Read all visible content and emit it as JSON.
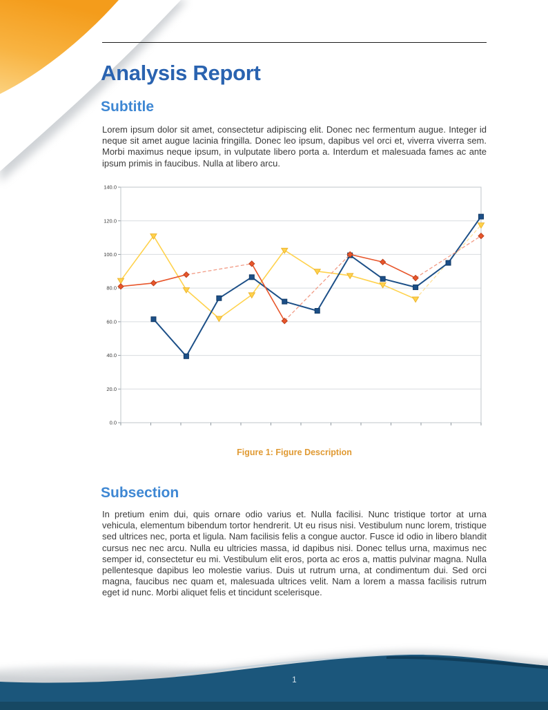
{
  "document": {
    "title": "Analysis Report",
    "subtitle_section": {
      "heading": "Subtitle",
      "body": "Lorem ipsum dolor sit amet, consectetur adipiscing elit.  Donec nec fermentum augue.  Integer id neque sit amet augue lacinia fringilla.  Donec leo ipsum, dapibus vel orci et, viverra viverra sem.  Morbi maximus neque ipsum, in vulputate libero porta a.  Interdum et malesuada fames ac ante ipsum primis in faucibus. Nulla at libero arcu."
    },
    "figure": {
      "caption": "Figure 1: Figure Description"
    },
    "subsection": {
      "heading": "Subsection",
      "body": "In pretium enim dui, quis ornare odio varius et.  Nulla facilisi.  Nunc tristique tortor at urna vehicula, elementum bibendum tortor hendrerit.  Ut eu risus nisi.  Vestibulum nunc lorem, tristique sed ultrices nec, porta et ligula. Nam facilisis felis a congue auctor. Fusce id odio in libero blandit cursus nec nec arcu. Nulla eu ultricies massa, id dapibus nisi.  Donec tellus urna, maximus nec semper id, consectetur eu mi.  Vestibulum elit eros, porta ac eros a, mattis pulvinar magna.  Nulla pellentesque dapibus leo molestie varius.  Duis ut rutrum urna, at condimentum dui.  Sed orci magna, faucibus nec quam et, malesuada ultrices velit.  Nam a lorem a massa facilisis rutrum eget id nunc.  Morbi aliquet felis et tincidunt scelerisque."
    },
    "footer": {
      "page_number": "1"
    }
  },
  "colors": {
    "title_blue": "#2A63B0",
    "heading_blue": "#3E87D3",
    "caption_orange": "#E09A33",
    "footer_blue": "#1B567B",
    "footer_dark_blue": "#164863",
    "corner_orange": "#F5A01F"
  },
  "chart_data": {
    "type": "line",
    "title": "",
    "xlabel": "",
    "ylabel": "",
    "x": [
      1,
      2,
      3,
      4,
      5,
      6,
      7,
      8,
      9,
      10,
      11,
      12
    ],
    "series": [
      {
        "name": "yellow-series",
        "color": "#FFD24D",
        "bridge_color": "#FFE29B",
        "marker": "triangle-down",
        "marker_stroke": "#EDB52E",
        "width": 1.6,
        "values": [
          84.5,
          111,
          79,
          62,
          76,
          102.5,
          90,
          87.5,
          82,
          73.5,
          null,
          117.5
        ]
      },
      {
        "name": "blue-series",
        "color": "#1C4F87",
        "bridge_color": null,
        "marker": "square",
        "marker_stroke": "#123A66",
        "width": 2,
        "values": [
          null,
          61.5,
          39.5,
          74,
          86.5,
          72,
          66.5,
          99.5,
          85.5,
          80.5,
          95,
          122.5
        ]
      },
      {
        "name": "red-series",
        "color": "#E8562B",
        "bridge_color": "#F29B85",
        "marker": "diamond",
        "marker_stroke": "#BC3F1C",
        "width": 1.6,
        "values": [
          81,
          83,
          88,
          null,
          94.5,
          60.5,
          null,
          100,
          95.5,
          86,
          null,
          111
        ]
      }
    ],
    "ylim": [
      0,
      140
    ],
    "yticks": [
      0,
      20,
      40,
      60,
      80,
      100,
      120,
      140
    ],
    "ytick_labels": [
      "0.0",
      "20.0",
      "40.0",
      "60.0",
      "80.0",
      "100.0",
      "120.0",
      "140.0"
    ],
    "xtick_count": 13,
    "grid": "horizontal",
    "legend": "none"
  }
}
